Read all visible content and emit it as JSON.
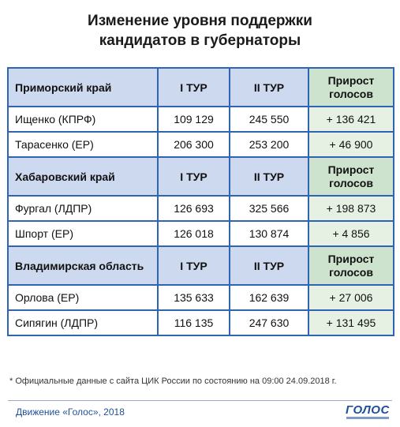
{
  "title": {
    "line1": "Изменение уровня поддержки",
    "line2": "кандидатов в губернаторы"
  },
  "chart_data": {
    "type": "table",
    "columns": [
      "I ТУР",
      "II ТУР",
      "Прирост голосов"
    ],
    "regions": [
      {
        "region": "Приморский край",
        "round1_label": "I ТУР",
        "round2_label": "II ТУР",
        "gain_label_1": "Прирост",
        "gain_label_2": "голосов",
        "rows": [
          {
            "candidate": "Ищенко (КПРФ)",
            "round1": "109 129",
            "round2": "245 550",
            "gain": "+ 136 421"
          },
          {
            "candidate": "Тарасенко (ЕР)",
            "round1": "206 300",
            "round2": "253 200",
            "gain": "+ 46 900"
          }
        ]
      },
      {
        "region": "Хабаровский край",
        "round1_label": "I ТУР",
        "round2_label": "II ТУР",
        "gain_label_1": "Прирост",
        "gain_label_2": "голосов",
        "rows": [
          {
            "candidate": "Фургал (ЛДПР)",
            "round1": "126 693",
            "round2": "325 566",
            "gain": "+ 198 873"
          },
          {
            "candidate": "Шпорт (ЕР)",
            "round1": "126 018",
            "round2": "130 874",
            "gain": "+ 4 856"
          }
        ]
      },
      {
        "region": "Владимирская область",
        "round1_label": "I ТУР",
        "round2_label": "II ТУР",
        "gain_label_1": "Прирост",
        "gain_label_2": "голосов",
        "rows": [
          {
            "candidate": "Орлова (ЕР)",
            "round1": "135 633",
            "round2": "162 639",
            "gain": "+ 27 006"
          },
          {
            "candidate": "Сипягин (ЛДПР)",
            "round1": "116 135",
            "round2": "247 630",
            "gain": "+ 131 495"
          }
        ]
      }
    ]
  },
  "footnote": "* Официальные данные с сайта ЦИК России по состоянию на 09:00 24.09.2018 г.",
  "footer": {
    "credit": "Движение «Голос», 2018",
    "logo_text": "ГОЛОС"
  },
  "colors": {
    "border": "#2f63b3",
    "header_fill": "#cdd9ee",
    "gain_header_fill": "#cde3cd",
    "gain_cell_fill": "#e6f1e4",
    "footer_text": "#1f4f9a"
  }
}
